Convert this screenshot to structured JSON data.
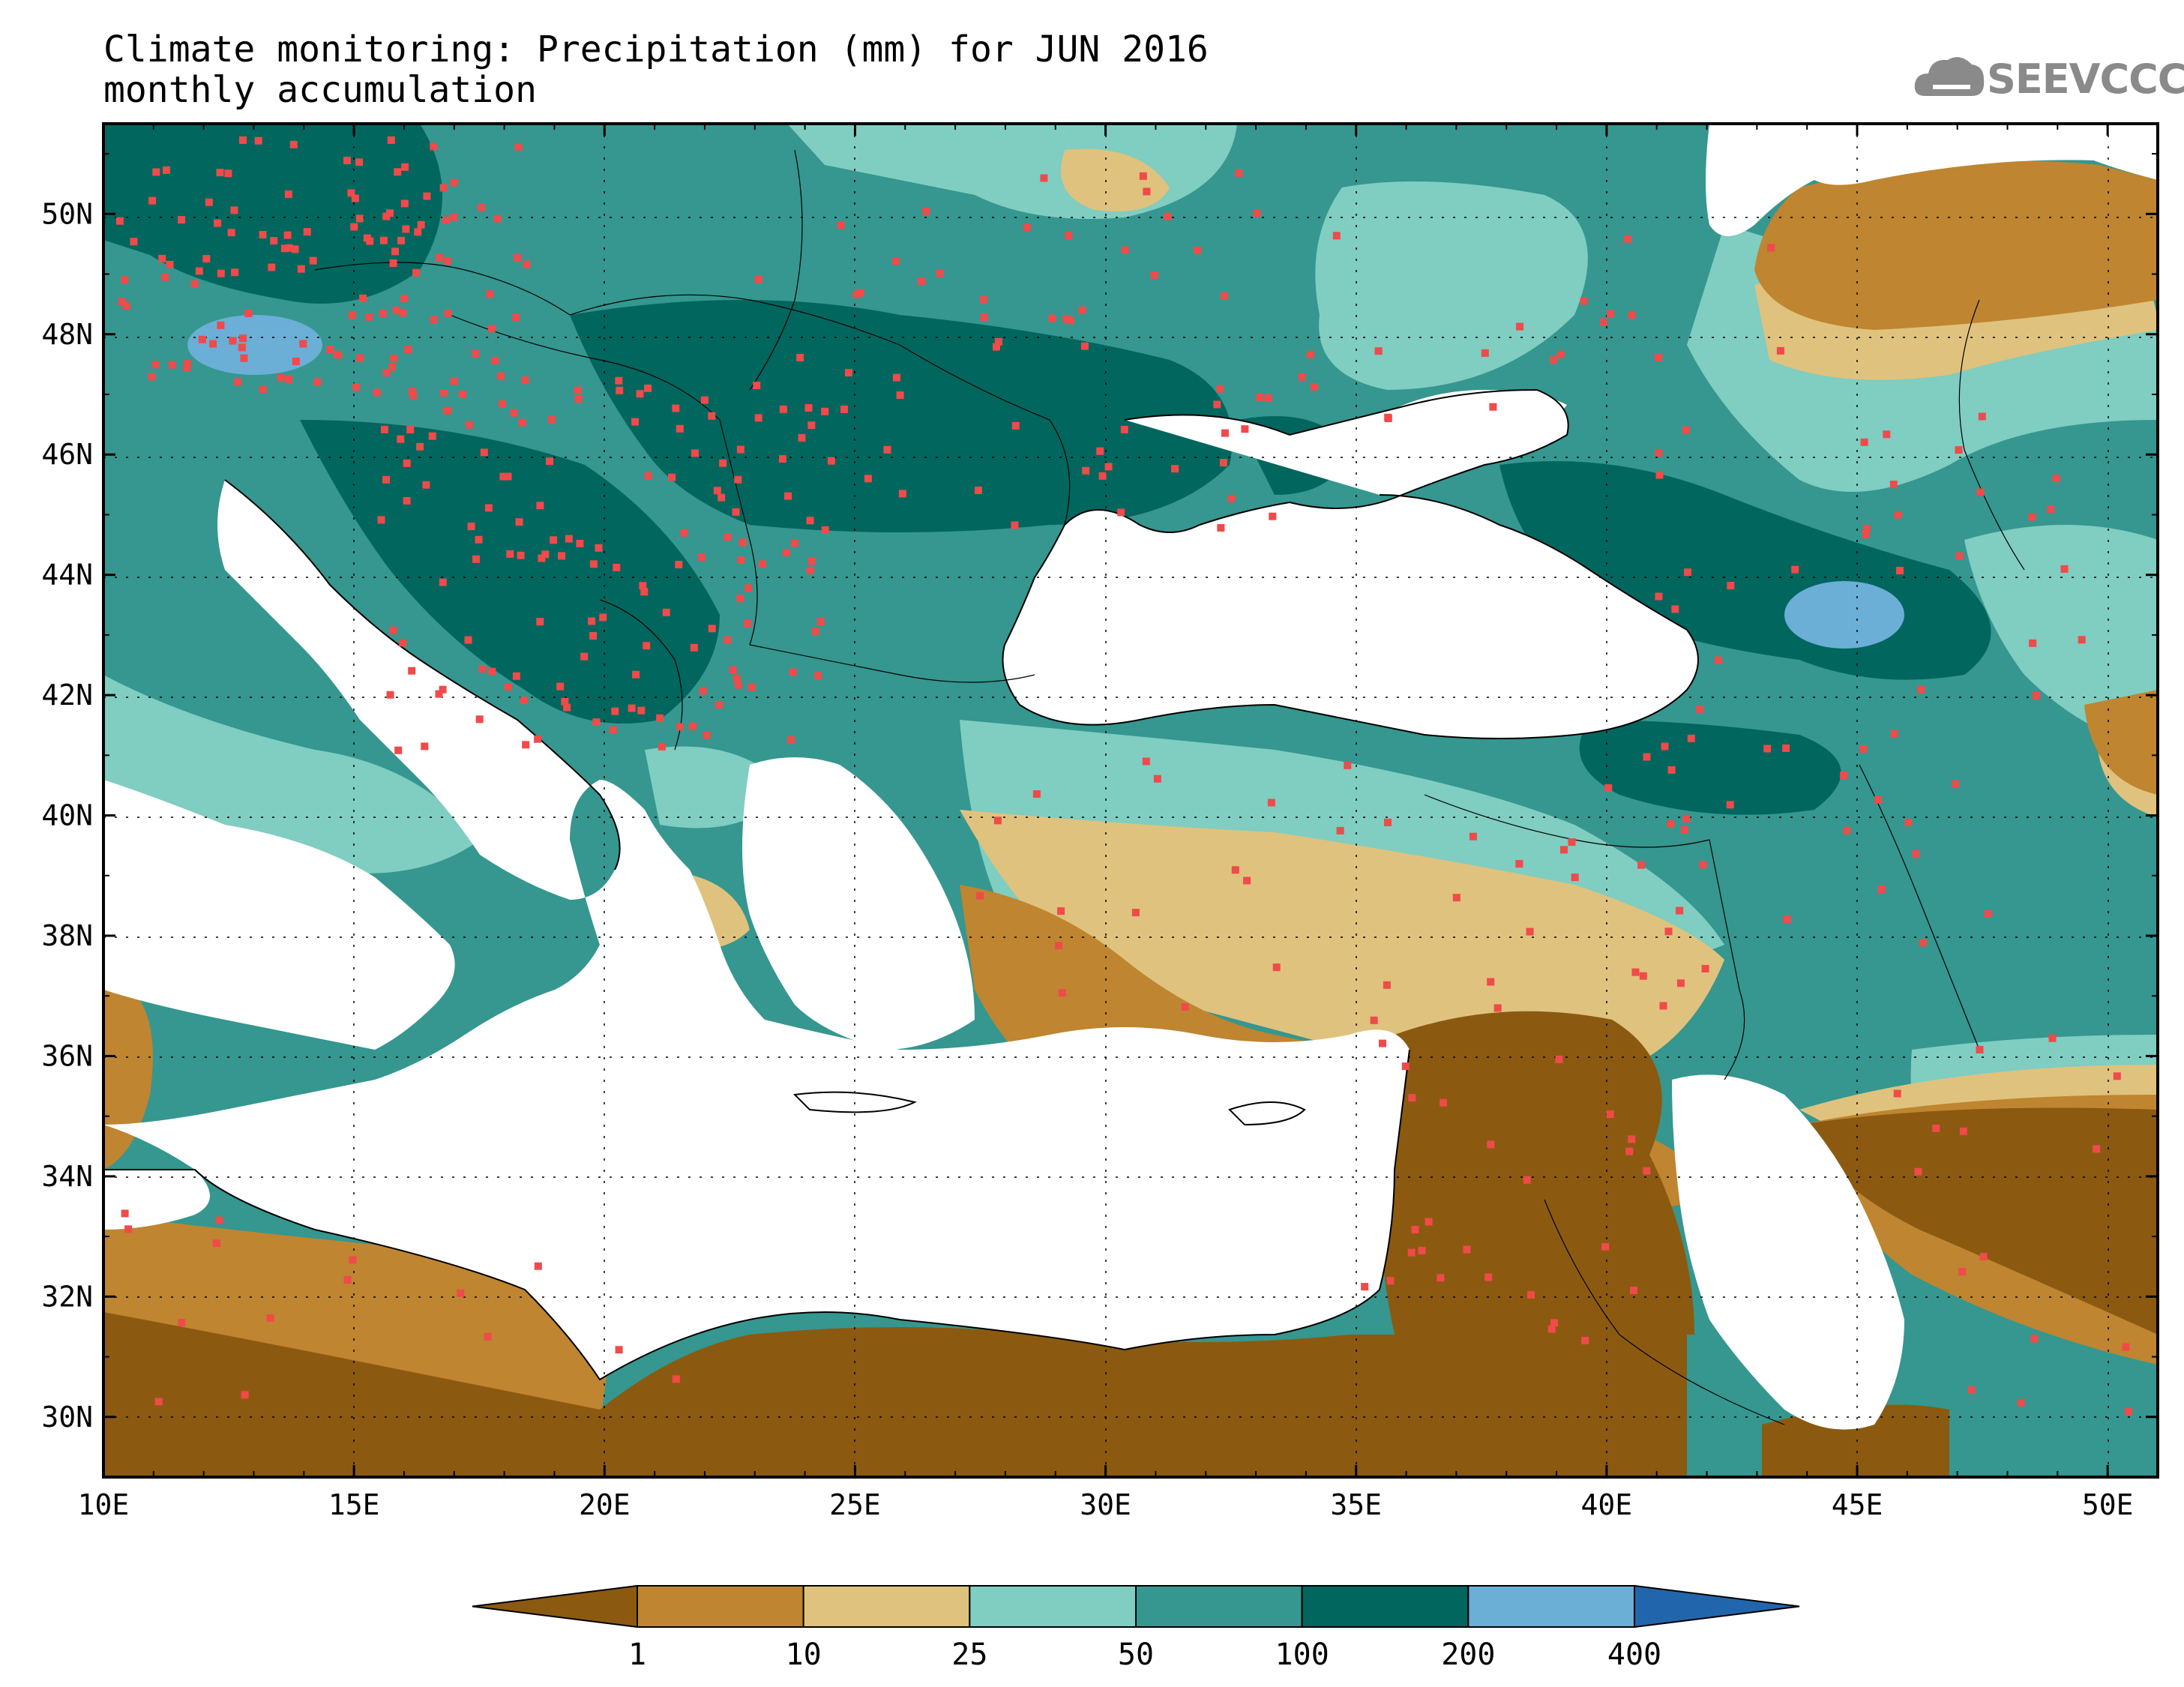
{
  "title": {
    "line1": "Climate monitoring: Precipitation (mm) for JUN 2016",
    "line2": "monthly accumulation"
  },
  "logo": {
    "text": "SEEVCCC",
    "icon": "cloud-icon"
  },
  "map": {
    "lon_ticks": [
      "10E",
      "15E",
      "20E",
      "25E",
      "30E",
      "35E",
      "40E",
      "45E",
      "50E"
    ],
    "lat_ticks": [
      "30N",
      "32N",
      "34N",
      "36N",
      "38N",
      "40N",
      "42N",
      "44N",
      "46N",
      "48N",
      "50N"
    ],
    "lon_range": [
      10,
      51
    ],
    "lat_range": [
      29,
      51.5
    ]
  },
  "colorbar": {
    "labels": [
      "1",
      "10",
      "25",
      "50",
      "100",
      "200",
      "400"
    ],
    "colors": [
      "#8b5a10",
      "#bf8530",
      "#dfc27d",
      "#80cdc1",
      "#35978f",
      "#01665e",
      "#6baed6",
      "#2166ac"
    ]
  },
  "station_color": "#f04a4a"
}
